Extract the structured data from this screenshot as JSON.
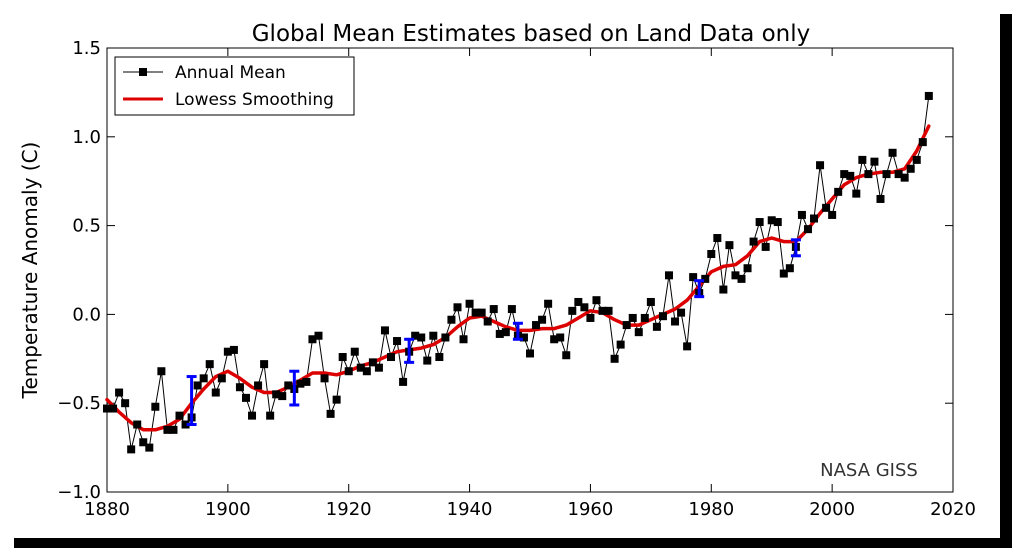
{
  "chart_data": {
    "type": "line",
    "title": "Global Mean Estimates based on Land Data only",
    "xlabel": "",
    "ylabel": "Temperature Anomaly (C)",
    "xlim": [
      1880,
      2020
    ],
    "ylim": [
      -1.0,
      1.5
    ],
    "x_ticks": [
      "1880",
      "1900",
      "1920",
      "1940",
      "1960",
      "1980",
      "2000",
      "2020"
    ],
    "y_ticks": [
      "−1.0",
      "−0.5",
      "0.0",
      "0.5",
      "1.0",
      "1.5"
    ],
    "grid": false,
    "legend_position": "top-left",
    "annotation": "NASA GISS",
    "colors": {
      "annual": "#000000",
      "lowess": "#dd0000",
      "error_bars": "#0000ff"
    },
    "series": [
      {
        "name": "Annual Mean",
        "style": "line-square-markers",
        "x": [
          1880,
          1881,
          1882,
          1883,
          1884,
          1885,
          1886,
          1887,
          1888,
          1889,
          1890,
          1891,
          1892,
          1893,
          1894,
          1895,
          1896,
          1897,
          1898,
          1899,
          1900,
          1901,
          1902,
          1903,
          1904,
          1905,
          1906,
          1907,
          1908,
          1909,
          1910,
          1911,
          1912,
          1913,
          1914,
          1915,
          1916,
          1917,
          1918,
          1919,
          1920,
          1921,
          1922,
          1923,
          1924,
          1925,
          1926,
          1927,
          1928,
          1929,
          1930,
          1931,
          1932,
          1933,
          1934,
          1935,
          1936,
          1937,
          1938,
          1939,
          1940,
          1941,
          1942,
          1943,
          1944,
          1945,
          1946,
          1947,
          1948,
          1949,
          1950,
          1951,
          1952,
          1953,
          1954,
          1955,
          1956,
          1957,
          1958,
          1959,
          1960,
          1961,
          1962,
          1963,
          1964,
          1965,
          1966,
          1967,
          1968,
          1969,
          1970,
          1971,
          1972,
          1973,
          1974,
          1975,
          1976,
          1977,
          1978,
          1979,
          1980,
          1981,
          1982,
          1983,
          1984,
          1985,
          1986,
          1987,
          1988,
          1989,
          1990,
          1991,
          1992,
          1993,
          1994,
          1995,
          1996,
          1997,
          1998,
          1999,
          2000,
          2001,
          2002,
          2003,
          2004,
          2005,
          2006,
          2007,
          2008,
          2009,
          2010,
          2011,
          2012,
          2013,
          2014,
          2015,
          2016
        ],
        "values": [
          -0.53,
          -0.53,
          -0.44,
          -0.5,
          -0.76,
          -0.62,
          -0.72,
          -0.75,
          -0.52,
          -0.32,
          -0.65,
          -0.65,
          -0.57,
          -0.62,
          -0.58,
          -0.4,
          -0.36,
          -0.28,
          -0.44,
          -0.36,
          -0.21,
          -0.2,
          -0.41,
          -0.47,
          -0.57,
          -0.4,
          -0.28,
          -0.57,
          -0.45,
          -0.46,
          -0.4,
          -0.42,
          -0.39,
          -0.38,
          -0.14,
          -0.12,
          -0.36,
          -0.56,
          -0.48,
          -0.24,
          -0.32,
          -0.21,
          -0.3,
          -0.32,
          -0.27,
          -0.3,
          -0.09,
          -0.24,
          -0.15,
          -0.38,
          -0.21,
          -0.12,
          -0.13,
          -0.26,
          -0.12,
          -0.24,
          -0.13,
          -0.03,
          0.04,
          -0.14,
          0.06,
          0.01,
          0.01,
          -0.04,
          0.03,
          -0.11,
          -0.1,
          0.03,
          -0.12,
          -0.13,
          -0.22,
          -0.06,
          -0.03,
          0.06,
          -0.14,
          -0.13,
          -0.23,
          0.02,
          0.07,
          0.04,
          -0.02,
          0.08,
          0.02,
          0.02,
          -0.25,
          -0.17,
          -0.06,
          -0.02,
          -0.1,
          -0.02,
          0.07,
          -0.07,
          -0.01,
          0.22,
          -0.04,
          0.01,
          -0.18,
          0.21,
          0.12,
          0.2,
          0.34,
          0.43,
          0.14,
          0.39,
          0.22,
          0.2,
          0.26,
          0.41,
          0.52,
          0.38,
          0.53,
          0.52,
          0.23,
          0.26,
          0.38,
          0.56,
          0.48,
          0.54,
          0.84,
          0.6,
          0.56,
          0.69,
          0.79,
          0.78,
          0.68,
          0.87,
          0.79,
          0.86,
          0.65,
          0.79,
          0.91,
          0.79,
          0.77,
          0.82,
          0.87,
          0.97,
          1.23
        ]
      },
      {
        "name": "Lowess Smoothing",
        "style": "smooth-line",
        "x": [
          1880,
          1882,
          1884,
          1886,
          1888,
          1890,
          1892,
          1894,
          1896,
          1898,
          1900,
          1902,
          1904,
          1906,
          1908,
          1910,
          1912,
          1914,
          1916,
          1918,
          1920,
          1922,
          1924,
          1926,
          1928,
          1930,
          1932,
          1934,
          1936,
          1938,
          1940,
          1942,
          1944,
          1946,
          1948,
          1950,
          1952,
          1954,
          1956,
          1958,
          1960,
          1962,
          1964,
          1966,
          1968,
          1970,
          1972,
          1974,
          1976,
          1978,
          1980,
          1982,
          1984,
          1986,
          1988,
          1990,
          1992,
          1994,
          1996,
          1998,
          2000,
          2002,
          2004,
          2006,
          2008,
          2010,
          2012,
          2014,
          2016
        ],
        "values": [
          -0.48,
          -0.55,
          -0.61,
          -0.65,
          -0.65,
          -0.63,
          -0.59,
          -0.5,
          -0.42,
          -0.35,
          -0.32,
          -0.36,
          -0.41,
          -0.44,
          -0.44,
          -0.41,
          -0.37,
          -0.33,
          -0.33,
          -0.34,
          -0.32,
          -0.29,
          -0.27,
          -0.24,
          -0.21,
          -0.2,
          -0.19,
          -0.17,
          -0.13,
          -0.07,
          -0.02,
          -0.01,
          -0.04,
          -0.07,
          -0.09,
          -0.09,
          -0.08,
          -0.08,
          -0.06,
          -0.02,
          0.02,
          0.01,
          -0.03,
          -0.06,
          -0.06,
          -0.03,
          0.0,
          0.03,
          0.08,
          0.16,
          0.24,
          0.27,
          0.28,
          0.33,
          0.41,
          0.43,
          0.41,
          0.41,
          0.48,
          0.57,
          0.65,
          0.73,
          0.77,
          0.79,
          0.8,
          0.8,
          0.82,
          0.92,
          1.06
        ]
      }
    ],
    "error_bars": [
      {
        "x": 1894,
        "low": -0.62,
        "high": -0.35
      },
      {
        "x": 1911,
        "low": -0.51,
        "high": -0.32
      },
      {
        "x": 1930,
        "low": -0.27,
        "high": -0.14
      },
      {
        "x": 1948,
        "low": -0.14,
        "high": -0.05
      },
      {
        "x": 1978,
        "low": 0.1,
        "high": 0.19
      },
      {
        "x": 1994,
        "low": 0.33,
        "high": 0.42
      }
    ]
  }
}
